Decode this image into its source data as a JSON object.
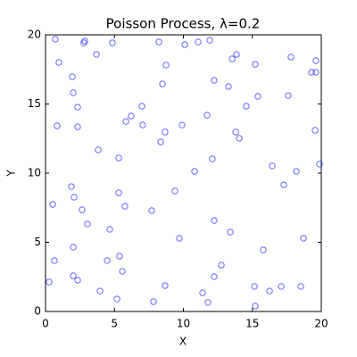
{
  "chart_data": {
    "type": "scatter",
    "title": "Poisson Process, λ=0.2",
    "x_label": "X",
    "y_label": "Y",
    "xlim": [
      0,
      20
    ],
    "ylim": [
      0,
      20
    ],
    "xticks": [
      0,
      5,
      10,
      15,
      20
    ],
    "yticks": [
      0,
      5,
      10,
      15,
      20
    ],
    "color": "#0000ff",
    "grid": false,
    "x": [
      0.71,
      2.85,
      2.78,
      4.85,
      8.22,
      10.1,
      11.07,
      11.91,
      0.97,
      3.69,
      8.74,
      13.53,
      13.85,
      15.21,
      17.8,
      19.61,
      19.61,
      19.29,
      1.94,
      2.01,
      8.48,
      12.23,
      13.27,
      15.4,
      17.6,
      2.33,
      6.99,
      14.56,
      0.84,
      2.33,
      5.83,
      6.21,
      7.05,
      8.67,
      9.9,
      11.72,
      13.79,
      14.05,
      19.55,
      3.82,
      8.35,
      5.31,
      12.1,
      16.44,
      18.19,
      19.87,
      10.81,
      17.28,
      1.88,
      2.07,
      5.31,
      9.39,
      0.52,
      2.65,
      5.76,
      7.7,
      12.23,
      3.04,
      4.66,
      13.4,
      9.71,
      18.71,
      2.01,
      15.79,
      5.37,
      0.65,
      4.47,
      12.75,
      5.57,
      2.01,
      2.33,
      12.23,
      0.26,
      8.67,
      3.95,
      11.39,
      15.15,
      16.25,
      17.09,
      18.51,
      5.18,
      7.83,
      11.78,
      15.21
    ],
    "values": [
      19.68,
      19.55,
      19.42,
      19.42,
      19.48,
      19.29,
      19.48,
      19.61,
      18.0,
      18.58,
      17.81,
      18.26,
      18.58,
      17.87,
      18.39,
      18.13,
      17.29,
      17.29,
      16.97,
      15.81,
      16.45,
      16.71,
      16.26,
      15.55,
      15.61,
      14.77,
      14.84,
      14.84,
      13.42,
      13.35,
      13.74,
      14.13,
      13.48,
      12.97,
      13.48,
      14.19,
      12.97,
      12.52,
      13.1,
      11.68,
      12.26,
      11.1,
      11.03,
      10.52,
      10.13,
      10.65,
      10.13,
      9.16,
      9.03,
      8.26,
      8.58,
      8.71,
      7.74,
      7.35,
      7.61,
      7.29,
      6.58,
      6.32,
      5.94,
      5.74,
      5.29,
      5.29,
      4.65,
      4.45,
      4.0,
      3.68,
      3.68,
      3.35,
      2.9,
      2.58,
      2.26,
      2.52,
      2.13,
      1.87,
      1.48,
      1.35,
      1.81,
      1.48,
      1.81,
      1.81,
      0.9,
      0.71,
      0.65,
      0.39
    ]
  }
}
